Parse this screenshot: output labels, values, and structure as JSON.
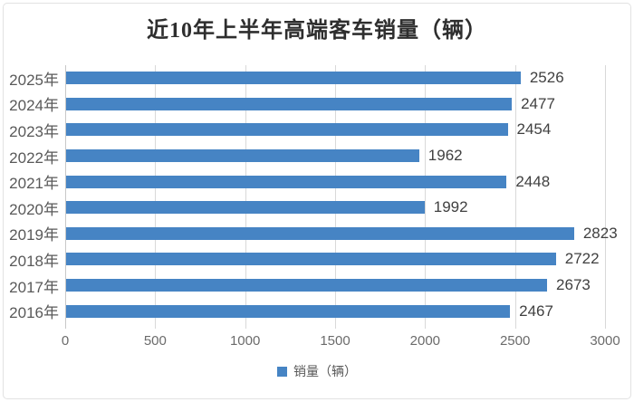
{
  "chart_data": {
    "type": "bar",
    "orientation": "horizontal",
    "title": "近10年上半年高端客车销量（辆）",
    "categories": [
      "2025年",
      "2024年",
      "2023年",
      "2022年",
      "2021年",
      "2020年",
      "2019年",
      "2018年",
      "2017年",
      "2016年"
    ],
    "values": [
      2526,
      2477,
      2454,
      1962,
      2448,
      1992,
      2823,
      2722,
      2673,
      2467
    ],
    "xlabel": "",
    "ylabel": "",
    "xlim": [
      0,
      3000
    ],
    "xticks": [
      0,
      500,
      1000,
      1500,
      2000,
      2500,
      3000
    ],
    "grid": "vertical-major-only",
    "data_labels": true,
    "legend": {
      "label": "销量（辆）",
      "position": "bottom"
    },
    "colors": {
      "bar": "#4684c4",
      "gridline": "#d9d9d9",
      "axis_text": "#595959",
      "value_label_text": "#404040",
      "title_text": "#2e2e2e",
      "frame_border": "#e2e2e2"
    }
  }
}
